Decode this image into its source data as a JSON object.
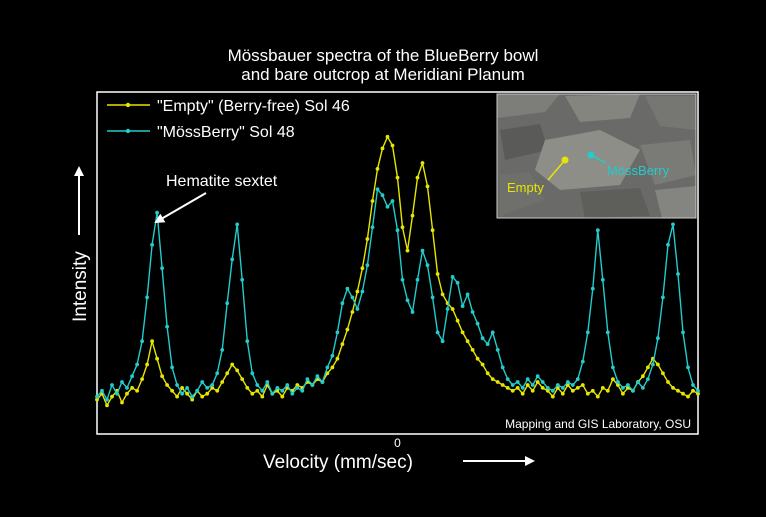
{
  "chart_data": {
    "type": "line",
    "title_lines": [
      "Mössbauer spectra of the BlueBerry bowl",
      "and bare outcrop at Meridiani Planum"
    ],
    "xlabel": "Velocity (mm/sec)",
    "ylabel": "Intensity",
    "x_ticks": [
      {
        "value": 0,
        "label": "0"
      }
    ],
    "xlim": [
      -12,
      12
    ],
    "ylim": [
      0,
      1
    ],
    "grid": false,
    "legend_position": "top-left",
    "annotation": "Hematite sextet",
    "credit": "Mapping and GIS Laboratory, OSU",
    "inset": {
      "label_empty": "Empty",
      "label_mossberry": "MössBerry"
    },
    "series": [
      {
        "name": "\"Empty\" (Berry-free)  Sol 46",
        "color": "#e6e600",
        "x": [
          -12.0,
          -11.8,
          -11.6,
          -11.4,
          -11.2,
          -11.0,
          -10.8,
          -10.6,
          -10.4,
          -10.2,
          -10.0,
          -9.8,
          -9.6,
          -9.4,
          -9.2,
          -9.0,
          -8.8,
          -8.6,
          -8.4,
          -8.2,
          -8.0,
          -7.8,
          -7.6,
          -7.4,
          -7.2,
          -7.0,
          -6.8,
          -6.6,
          -6.4,
          -6.2,
          -6.0,
          -5.8,
          -5.6,
          -5.4,
          -5.2,
          -5.0,
          -4.8,
          -4.6,
          -4.4,
          -4.2,
          -4.0,
          -3.8,
          -3.6,
          -3.4,
          -3.2,
          -3.0,
          -2.8,
          -2.6,
          -2.4,
          -2.2,
          -2.0,
          -1.8,
          -1.6,
          -1.4,
          -1.2,
          -1.0,
          -0.8,
          -0.6,
          -0.4,
          -0.2,
          0.0,
          0.2,
          0.4,
          0.6,
          0.8,
          1.0,
          1.2,
          1.4,
          1.6,
          1.8,
          2.0,
          2.2,
          2.4,
          2.6,
          2.8,
          3.0,
          3.2,
          3.4,
          3.6,
          3.8,
          4.0,
          4.2,
          4.4,
          4.6,
          4.8,
          5.0,
          5.2,
          5.4,
          5.6,
          5.8,
          6.0,
          6.2,
          6.4,
          6.6,
          6.8,
          7.0,
          7.2,
          7.4,
          7.6,
          7.8,
          8.0,
          8.2,
          8.4,
          8.6,
          8.8,
          9.0,
          9.2,
          9.4,
          9.6,
          9.8,
          10.0,
          10.2,
          10.4,
          10.6,
          10.8,
          11.0,
          11.2,
          11.4,
          11.6,
          11.8,
          12.0
        ],
        "values": [
          0.07,
          0.09,
          0.05,
          0.08,
          0.1,
          0.06,
          0.09,
          0.11,
          0.1,
          0.14,
          0.19,
          0.27,
          0.21,
          0.15,
          0.12,
          0.1,
          0.08,
          0.11,
          0.09,
          0.07,
          0.1,
          0.08,
          0.09,
          0.11,
          0.1,
          0.13,
          0.16,
          0.19,
          0.17,
          0.14,
          0.11,
          0.09,
          0.1,
          0.08,
          0.12,
          0.09,
          0.1,
          0.08,
          0.11,
          0.1,
          0.12,
          0.11,
          0.13,
          0.12,
          0.14,
          0.13,
          0.16,
          0.18,
          0.21,
          0.26,
          0.31,
          0.37,
          0.44,
          0.52,
          0.62,
          0.75,
          0.86,
          0.93,
          0.97,
          0.94,
          0.83,
          0.66,
          0.58,
          0.7,
          0.83,
          0.88,
          0.8,
          0.65,
          0.5,
          0.43,
          0.4,
          0.38,
          0.34,
          0.3,
          0.27,
          0.24,
          0.21,
          0.19,
          0.16,
          0.14,
          0.13,
          0.12,
          0.11,
          0.1,
          0.11,
          0.09,
          0.12,
          0.1,
          0.13,
          0.11,
          0.1,
          0.08,
          0.11,
          0.09,
          0.12,
          0.1,
          0.11,
          0.12,
          0.09,
          0.1,
          0.08,
          0.11,
          0.1,
          0.14,
          0.12,
          0.09,
          0.11,
          0.1,
          0.13,
          0.15,
          0.18,
          0.21,
          0.19,
          0.16,
          0.13,
          0.11,
          0.1,
          0.09,
          0.08,
          0.1,
          0.09
        ]
      },
      {
        "name": "\"MössBerry\"  Sol 48",
        "color": "#22cccc",
        "x": [
          -12.0,
          -11.8,
          -11.6,
          -11.4,
          -11.2,
          -11.0,
          -10.8,
          -10.6,
          -10.4,
          -10.2,
          -10.0,
          -9.8,
          -9.6,
          -9.4,
          -9.2,
          -9.0,
          -8.8,
          -8.6,
          -8.4,
          -8.2,
          -8.0,
          -7.8,
          -7.6,
          -7.4,
          -7.2,
          -7.0,
          -6.8,
          -6.6,
          -6.4,
          -6.2,
          -6.0,
          -5.8,
          -5.6,
          -5.4,
          -5.2,
          -5.0,
          -4.8,
          -4.6,
          -4.4,
          -4.2,
          -4.0,
          -3.8,
          -3.6,
          -3.4,
          -3.2,
          -3.0,
          -2.8,
          -2.6,
          -2.4,
          -2.2,
          -2.0,
          -1.8,
          -1.6,
          -1.4,
          -1.2,
          -1.0,
          -0.8,
          -0.6,
          -0.4,
          -0.2,
          0.0,
          0.2,
          0.4,
          0.6,
          0.8,
          1.0,
          1.2,
          1.4,
          1.6,
          1.8,
          2.0,
          2.2,
          2.4,
          2.6,
          2.8,
          3.0,
          3.2,
          3.4,
          3.6,
          3.8,
          4.0,
          4.2,
          4.4,
          4.6,
          4.8,
          5.0,
          5.2,
          5.4,
          5.6,
          5.8,
          6.0,
          6.2,
          6.4,
          6.6,
          6.8,
          7.0,
          7.2,
          7.4,
          7.6,
          7.8,
          8.0,
          8.2,
          8.4,
          8.6,
          8.8,
          9.0,
          9.2,
          9.4,
          9.6,
          9.8,
          10.0,
          10.2,
          10.4,
          10.6,
          10.8,
          11.0,
          11.2,
          11.4,
          11.6,
          11.8,
          12.0
        ],
        "values": [
          0.08,
          0.1,
          0.07,
          0.12,
          0.09,
          0.13,
          0.11,
          0.15,
          0.19,
          0.27,
          0.42,
          0.6,
          0.71,
          0.52,
          0.32,
          0.18,
          0.12,
          0.09,
          0.11,
          0.08,
          0.1,
          0.13,
          0.11,
          0.12,
          0.16,
          0.24,
          0.4,
          0.55,
          0.67,
          0.48,
          0.27,
          0.16,
          0.12,
          0.1,
          0.13,
          0.09,
          0.11,
          0.1,
          0.12,
          0.09,
          0.11,
          0.1,
          0.14,
          0.12,
          0.15,
          0.13,
          0.18,
          0.22,
          0.3,
          0.4,
          0.45,
          0.42,
          0.38,
          0.44,
          0.53,
          0.66,
          0.79,
          0.77,
          0.73,
          0.75,
          0.65,
          0.48,
          0.41,
          0.37,
          0.48,
          0.58,
          0.53,
          0.42,
          0.3,
          0.27,
          0.38,
          0.49,
          0.47,
          0.39,
          0.43,
          0.37,
          0.33,
          0.28,
          0.26,
          0.3,
          0.24,
          0.18,
          0.14,
          0.12,
          0.13,
          0.11,
          0.14,
          0.12,
          0.15,
          0.13,
          0.11,
          0.1,
          0.12,
          0.11,
          0.13,
          0.12,
          0.14,
          0.2,
          0.3,
          0.45,
          0.65,
          0.48,
          0.3,
          0.18,
          0.13,
          0.11,
          0.12,
          0.1,
          0.13,
          0.11,
          0.14,
          0.19,
          0.28,
          0.42,
          0.6,
          0.67,
          0.5,
          0.3,
          0.18,
          0.12,
          0.1
        ]
      }
    ]
  }
}
